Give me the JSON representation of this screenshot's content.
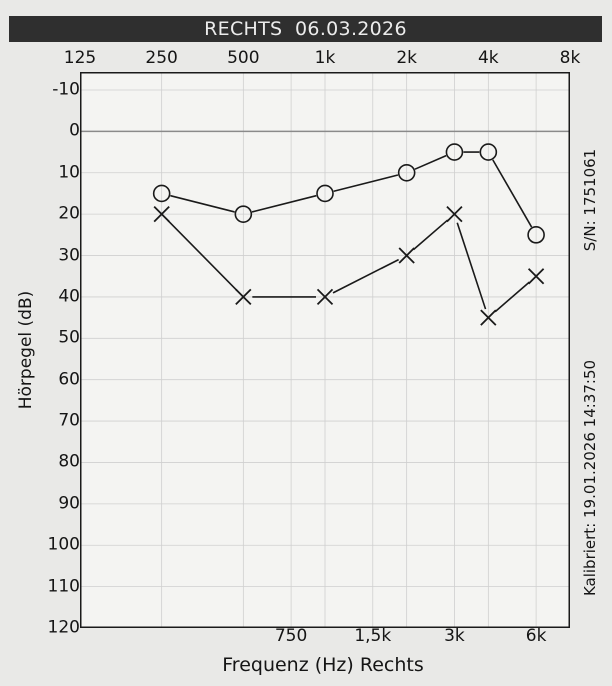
{
  "title": "RECHTS  06.03.2026",
  "x_top_ticks": [
    "125",
    "250",
    "500",
    "1k",
    "2k",
    "4k",
    "8k"
  ],
  "x_bottom_ticks": [
    "750",
    "1,5k",
    "3k",
    "6k"
  ],
  "xlabel": "Frequenz (Hz) Rechts",
  "ylabel": "Hörpegel (dB)",
  "serial_label": "S/N: 1751061",
  "calibration_label": "Kalibriert: 19.01.2026 14:37:50",
  "colors": {
    "background": "#e9e9e7",
    "title_bar": "#2f2f2f",
    "grid": "#cfcfcf",
    "line": "#1a1a1a"
  },
  "chart_data": {
    "type": "line",
    "title": "RECHTS  06.03.2026",
    "xlabel": "Frequenz (Hz) Rechts",
    "ylabel": "Hörpegel (dB)",
    "x_scale": "log",
    "y_inverted": true,
    "xlim": [
      125,
      8000
    ],
    "ylim": [
      -10,
      120
    ],
    "y_ticks": [
      -10,
      0,
      10,
      20,
      30,
      40,
      50,
      60,
      70,
      80,
      90,
      100,
      110,
      120
    ],
    "x_ticks": [
      125,
      250,
      500,
      750,
      1000,
      1500,
      2000,
      3000,
      4000,
      6000,
      8000
    ],
    "x_tick_labels": [
      "125",
      "250",
      "500",
      "750",
      "1k",
      "1,5k",
      "2k",
      "3k",
      "4k",
      "6k",
      "8k"
    ],
    "reference_line_y": 0,
    "grid": true,
    "series": [
      {
        "marker": "circle",
        "points": [
          {
            "x": 250,
            "y": 15
          },
          {
            "x": 500,
            "y": 20
          },
          {
            "x": 1000,
            "y": 15
          },
          {
            "x": 2000,
            "y": 10
          },
          {
            "x": 3000,
            "y": 5
          },
          {
            "x": 4000,
            "y": 5
          },
          {
            "x": 6000,
            "y": 25
          }
        ]
      },
      {
        "marker": "cross",
        "points": [
          {
            "x": 250,
            "y": 20
          },
          {
            "x": 500,
            "y": 40
          },
          {
            "x": 1000,
            "y": 40
          },
          {
            "x": 2000,
            "y": 30
          },
          {
            "x": 3000,
            "y": 20
          },
          {
            "x": 4000,
            "y": 45
          },
          {
            "x": 6000,
            "y": 35
          }
        ]
      }
    ]
  }
}
